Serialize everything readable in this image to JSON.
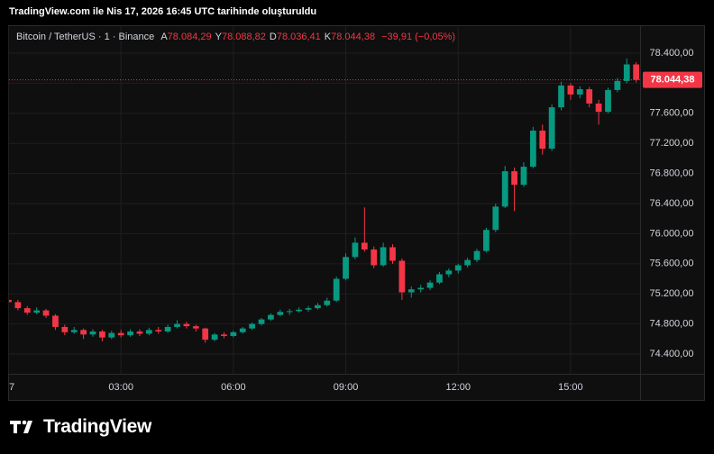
{
  "chart_data": {
    "type": "candlestick",
    "title": "TradingView.com ile Nis 17, 2026 16:45 UTC tarihinde oluşturuldu",
    "symbol": "Bitcoin / TetherUS · 1 · Binance",
    "ohlc_header": [
      {
        "prefix": "A",
        "value": 78084.29,
        "label": "78.084,29"
      },
      {
        "prefix": "Y",
        "value": 78088.82,
        "label": "78.088,82"
      },
      {
        "prefix": "D",
        "value": 78036.41,
        "label": "78.036,41"
      },
      {
        "prefix": "K",
        "value": 78044.38,
        "label": "78.044,38"
      }
    ],
    "change": "−39,91 (−0,05%)",
    "up_color": "#089981",
    "down_color": "#f23645",
    "grid": true,
    "x": [
      0,
      15,
      30,
      45,
      60,
      75,
      90,
      105,
      120,
      135,
      150,
      165,
      180,
      195,
      210,
      225,
      240,
      255,
      270,
      285,
      300,
      315,
      330,
      345,
      360,
      375,
      390,
      405,
      420,
      435,
      450,
      465,
      480,
      495,
      510,
      525,
      540,
      555,
      570,
      585,
      600,
      615,
      630,
      645,
      660,
      675,
      690,
      705,
      720,
      735,
      750,
      765,
      780,
      795,
      810,
      825,
      840,
      855,
      870,
      885,
      900,
      915,
      930,
      945,
      960,
      975,
      990,
      1005
    ],
    "candles": [
      [
        75120,
        75160,
        75040,
        75090
      ],
      [
        75090,
        75120,
        74980,
        75010
      ],
      [
        75010,
        75040,
        74920,
        74950
      ],
      [
        74950,
        75020,
        74930,
        74980
      ],
      [
        74980,
        75000,
        74880,
        74910
      ],
      [
        74910,
        74930,
        74720,
        74760
      ],
      [
        74760,
        74790,
        74650,
        74690
      ],
      [
        74690,
        74760,
        74670,
        74720
      ],
      [
        74720,
        74740,
        74600,
        74660
      ],
      [
        74660,
        74730,
        74630,
        74700
      ],
      [
        74700,
        74720,
        74570,
        74620
      ],
      [
        74620,
        74710,
        74600,
        74680
      ],
      [
        74680,
        74720,
        74620,
        74650
      ],
      [
        74650,
        74730,
        74630,
        74700
      ],
      [
        74700,
        74730,
        74640,
        74670
      ],
      [
        74670,
        74750,
        74650,
        74720
      ],
      [
        74720,
        74760,
        74670,
        74700
      ],
      [
        74700,
        74790,
        74680,
        74760
      ],
      [
        74760,
        74850,
        74740,
        74800
      ],
      [
        74800,
        74830,
        74740,
        74770
      ],
      [
        74770,
        74790,
        74700,
        74740
      ],
      [
        74740,
        74750,
        74550,
        74590
      ],
      [
        74590,
        74680,
        74570,
        74660
      ],
      [
        74660,
        74690,
        74610,
        74640
      ],
      [
        74640,
        74710,
        74620,
        74690
      ],
      [
        74690,
        74760,
        74670,
        74740
      ],
      [
        74740,
        74820,
        74720,
        74800
      ],
      [
        74800,
        74880,
        74780,
        74860
      ],
      [
        74860,
        74940,
        74840,
        74920
      ],
      [
        74920,
        74990,
        74900,
        74960
      ],
      [
        74960,
        75000,
        74920,
        74970
      ],
      [
        74970,
        75020,
        74950,
        74990
      ],
      [
        74990,
        75040,
        74960,
        75010
      ],
      [
        75010,
        75080,
        74990,
        75050
      ],
      [
        75050,
        75150,
        75030,
        75110
      ],
      [
        75110,
        75430,
        75090,
        75400
      ],
      [
        75400,
        75740,
        75380,
        75690
      ],
      [
        75690,
        75950,
        75660,
        75880
      ],
      [
        75880,
        76350,
        75760,
        75790
      ],
      [
        75790,
        75830,
        75540,
        75580
      ],
      [
        75580,
        75880,
        75560,
        75820
      ],
      [
        75820,
        75860,
        75600,
        75640
      ],
      [
        75640,
        75670,
        75120,
        75220
      ],
      [
        75220,
        75300,
        75150,
        75260
      ],
      [
        75260,
        75320,
        75220,
        75280
      ],
      [
        75280,
        75380,
        75250,
        75350
      ],
      [
        75350,
        75490,
        75330,
        75460
      ],
      [
        75460,
        75540,
        75420,
        75510
      ],
      [
        75510,
        75600,
        75470,
        75580
      ],
      [
        75580,
        75680,
        75550,
        75650
      ],
      [
        75650,
        75800,
        75620,
        75770
      ],
      [
        75770,
        76080,
        75750,
        76050
      ],
      [
        76050,
        76400,
        76020,
        76360
      ],
      [
        76360,
        76900,
        76340,
        76830
      ],
      [
        76830,
        76880,
        76300,
        76650
      ],
      [
        76650,
        76950,
        76620,
        76890
      ],
      [
        76890,
        77420,
        76870,
        77370
      ],
      [
        77370,
        77450,
        77050,
        77130
      ],
      [
        77130,
        77720,
        77100,
        77680
      ],
      [
        77680,
        78020,
        77640,
        77970
      ],
      [
        77970,
        78000,
        77780,
        77850
      ],
      [
        77850,
        77960,
        77800,
        77920
      ],
      [
        77920,
        77950,
        77680,
        77730
      ],
      [
        77730,
        77780,
        77450,
        77620
      ],
      [
        77620,
        77940,
        77600,
        77910
      ],
      [
        77910,
        78070,
        77880,
        78030
      ],
      [
        78030,
        78330,
        78000,
        78250
      ],
      [
        78250,
        78280,
        78010,
        78044.38
      ]
    ],
    "xlim": [
      0,
      1012
    ],
    "xticks": [
      {
        "value": 0,
        "label": "7"
      },
      {
        "value": 180,
        "label": "03:00"
      },
      {
        "value": 360,
        "label": "06:00"
      },
      {
        "value": 540,
        "label": "09:00"
      },
      {
        "value": 720,
        "label": "12:00"
      },
      {
        "value": 900,
        "label": "15:00"
      }
    ],
    "ylim": [
      74137,
      78771
    ],
    "yticks": [
      {
        "value": 74400,
        "label": "74.400,00"
      },
      {
        "value": 74800,
        "label": "74.800,00"
      },
      {
        "value": 75200,
        "label": "75.200,00"
      },
      {
        "value": 75600,
        "label": "75.600,00"
      },
      {
        "value": 76000,
        "label": "76.000,00"
      },
      {
        "value": 76400,
        "label": "76.400,00"
      },
      {
        "value": 76800,
        "label": "76.800,00"
      },
      {
        "value": 77200,
        "label": "77.200,00"
      },
      {
        "value": 77600,
        "label": "77.600,00"
      },
      {
        "value": 78000,
        "label": "78.000,00"
      },
      {
        "value": 78400,
        "label": "78.400,00"
      }
    ],
    "last_price": {
      "value": 78044.38,
      "label": "78.044,38"
    },
    "branding": "TradingView"
  }
}
